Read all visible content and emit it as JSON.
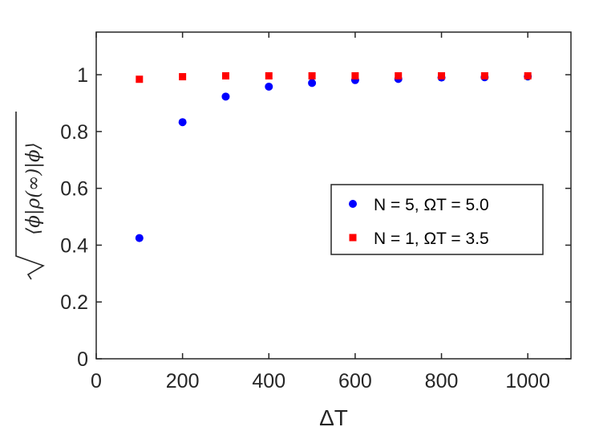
{
  "chart_data": {
    "type": "scatter",
    "xlabel": "ΔT",
    "ylabel": "√⟨ϕ|ρ(∞)|ϕ⟩",
    "xlim": [
      0,
      1100
    ],
    "ylim": [
      0,
      1.15
    ],
    "xticks": [
      0,
      200,
      400,
      600,
      800,
      1000
    ],
    "yticks": [
      0,
      0.2,
      0.4,
      0.6,
      0.8,
      1
    ],
    "grid": false,
    "legend_position": "center-right",
    "series": [
      {
        "name": "N = 5, ΩT = 5.0",
        "marker": "circle",
        "color": "#0000ff",
        "x": [
          100,
          200,
          300,
          400,
          500,
          600,
          700,
          800,
          900,
          1000
        ],
        "y": [
          0.425,
          0.833,
          0.923,
          0.958,
          0.971,
          0.981,
          0.985,
          0.99,
          0.991,
          0.994
        ]
      },
      {
        "name": "N = 1, ΩT = 3.5",
        "marker": "square",
        "color": "#ff0000",
        "x": [
          100,
          200,
          300,
          400,
          500,
          600,
          700,
          800,
          900,
          1000
        ],
        "y": [
          0.984,
          0.993,
          0.996,
          0.996,
          0.996,
          0.996,
          0.996,
          0.996,
          0.996,
          0.996
        ]
      }
    ]
  }
}
